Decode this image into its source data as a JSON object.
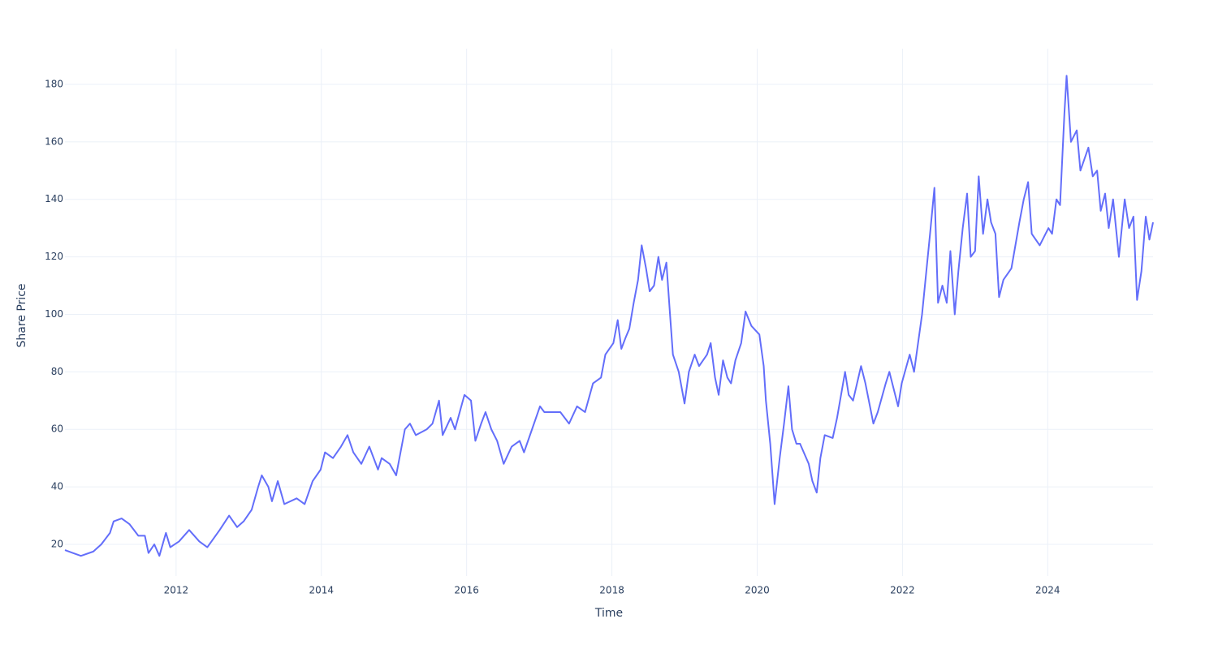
{
  "chart_data": {
    "type": "line",
    "xlabel": "Time",
    "ylabel": "Share Price",
    "x": [
      2010.47,
      2010.58,
      2010.69,
      2010.86,
      2010.97,
      2011.09,
      2011.14,
      2011.25,
      2011.36,
      2011.48,
      2011.57,
      2011.62,
      2011.7,
      2011.77,
      2011.86,
      2011.92,
      2012.04,
      2012.18,
      2012.32,
      2012.43,
      2012.6,
      2012.73,
      2012.84,
      2012.93,
      2013.04,
      2013.13,
      2013.18,
      2013.27,
      2013.32,
      2013.4,
      2013.49,
      2013.66,
      2013.77,
      2013.88,
      2013.99,
      2014.05,
      2014.16,
      2014.27,
      2014.36,
      2014.44,
      2014.55,
      2014.66,
      2014.78,
      2014.83,
      2014.94,
      2015.03,
      2015.15,
      2015.22,
      2015.3,
      2015.45,
      2015.53,
      2015.62,
      2015.67,
      2015.78,
      2015.84,
      2015.97,
      2016.06,
      2016.12,
      2016.2,
      2016.26,
      2016.34,
      2016.42,
      2016.51,
      2016.62,
      2016.73,
      2016.79,
      2016.9,
      2017.01,
      2017.07,
      2017.29,
      2017.41,
      2017.52,
      2017.63,
      2017.74,
      2017.85,
      2017.91,
      2018.02,
      2018.08,
      2018.13,
      2018.19,
      2018.24,
      2018.3,
      2018.36,
      2018.41,
      2018.47,
      2018.52,
      2018.58,
      2018.64,
      2018.69,
      2018.75,
      2018.8,
      2018.84,
      2018.92,
      2019.0,
      2019.06,
      2019.14,
      2019.2,
      2019.31,
      2019.36,
      2019.42,
      2019.47,
      2019.53,
      2019.59,
      2019.64,
      2019.7,
      2019.78,
      2019.84,
      2019.92,
      2020.03,
      2020.09,
      2020.12,
      2020.18,
      2020.24,
      2020.31,
      2020.37,
      2020.43,
      2020.48,
      2020.54,
      2020.59,
      2020.71,
      2020.76,
      2020.82,
      2020.87,
      2020.93,
      2021.04,
      2021.1,
      2021.21,
      2021.26,
      2021.32,
      2021.43,
      2021.49,
      2021.6,
      2021.66,
      2021.77,
      2021.82,
      2021.94,
      2021.99,
      2022.1,
      2022.16,
      2022.27,
      2022.38,
      2022.44,
      2022.49,
      2022.55,
      2022.61,
      2022.66,
      2022.72,
      2022.77,
      2022.83,
      2022.89,
      2022.94,
      2023.0,
      2023.05,
      2023.11,
      2023.17,
      2023.22,
      2023.28,
      2023.33,
      2023.39,
      2023.5,
      2023.61,
      2023.67,
      2023.73,
      2023.78,
      2023.89,
      2024.01,
      2024.06,
      2024.12,
      2024.17,
      2024.23,
      2024.26,
      2024.32,
      2024.4,
      2024.45,
      2024.56,
      2024.62,
      2024.68,
      2024.73,
      2024.79,
      2024.84,
      2024.9,
      2024.98,
      2025.06,
      2025.12,
      2025.18,
      2025.23,
      2025.29,
      2025.35,
      2025.4,
      2025.45
    ],
    "series": [
      {
        "color": "#636efa",
        "values": [
          18,
          17,
          16,
          17.5,
          20,
          24,
          28,
          29,
          27,
          23,
          23,
          17,
          20,
          16,
          24,
          19,
          21,
          25,
          21,
          19,
          25,
          30,
          26,
          28,
          32,
          40,
          44,
          40,
          35,
          42,
          34,
          36,
          34,
          42,
          46,
          52,
          50,
          54,
          58,
          52,
          48,
          54,
          46,
          50,
          48,
          44,
          60,
          62,
          58,
          60,
          62,
          70,
          58,
          64,
          60,
          72,
          70,
          56,
          62,
          66,
          60,
          56,
          48,
          54,
          56,
          52,
          60,
          68,
          66,
          66,
          62,
          68,
          66,
          76,
          78,
          86,
          90,
          98,
          88,
          92,
          95,
          104,
          112,
          124,
          116,
          108,
          110,
          120,
          112,
          118,
          100,
          86,
          80,
          69,
          80,
          86,
          82,
          86,
          90,
          78,
          72,
          84,
          78,
          76,
          84,
          90,
          101,
          96,
          93,
          82,
          70,
          55,
          34,
          50,
          62,
          75,
          60,
          55,
          55,
          48,
          42,
          38,
          50,
          58,
          57,
          64,
          80,
          72,
          70,
          82,
          76,
          62,
          66,
          76,
          80,
          68,
          76,
          86,
          80,
          100,
          128,
          144,
          104,
          110,
          104,
          122,
          100,
          115,
          130,
          142,
          120,
          122,
          148,
          128,
          140,
          132,
          128,
          106,
          112,
          116,
          132,
          140,
          146,
          128,
          124,
          130,
          128,
          140,
          138,
          170,
          183,
          160,
          164,
          150,
          158,
          148,
          150,
          136,
          142,
          130,
          140,
          120,
          140,
          130,
          134,
          105,
          115,
          134,
          126,
          132
        ]
      }
    ],
    "xlim": [
      2010.47,
      2025.45
    ],
    "xticks": [
      2012,
      2014,
      2016,
      2018,
      2020,
      2022,
      2024
    ],
    "ylim": [
      9,
      192.4
    ],
    "yticks": [
      20,
      40,
      60,
      80,
      100,
      120,
      140,
      160,
      180
    ],
    "grid": true
  }
}
